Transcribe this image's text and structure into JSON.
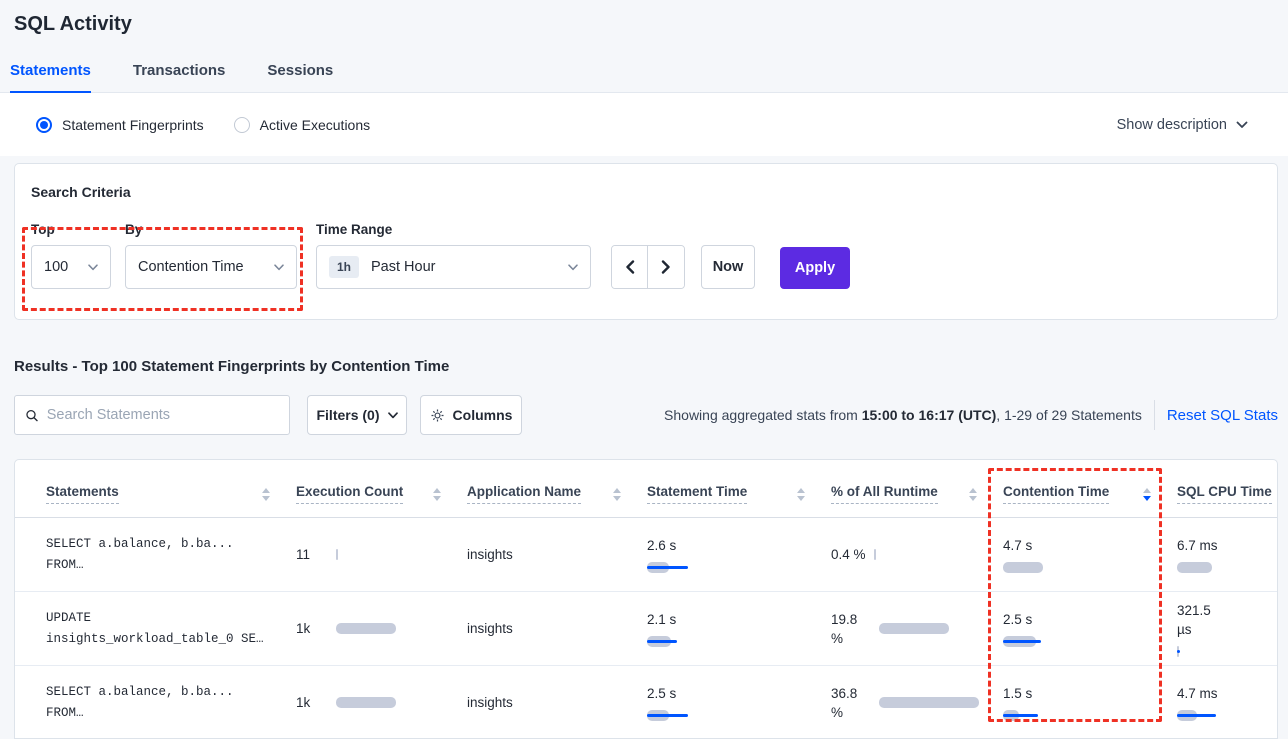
{
  "page_title": "SQL Activity",
  "tabs": [
    {
      "label": "Statements"
    },
    {
      "label": "Transactions"
    },
    {
      "label": "Sessions"
    }
  ],
  "view_toggle": {
    "fingerprints_label": "Statement Fingerprints",
    "active_executions_label": "Active Executions",
    "show_description_label": "Show description"
  },
  "search_criteria": {
    "heading": "Search Criteria",
    "top_label": "Top",
    "top_value": "100",
    "by_label": "By",
    "by_value": "Contention Time",
    "time_range_label": "Time Range",
    "time_range_badge": "1h",
    "time_range_value": "Past Hour",
    "now_label": "Now",
    "apply_label": "Apply"
  },
  "results": {
    "heading": "Results - Top 100 Statement Fingerprints by Contention Time",
    "search_placeholder": "Search Statements",
    "filters_label": "Filters (0)",
    "columns_label": "Columns",
    "stats_prefix": "Showing aggregated stats from ",
    "stats_bold": "15:00 to 16:17 (UTC)",
    "stats_suffix": ", 1-29 of 29 Statements",
    "reset_label": "Reset SQL Stats"
  },
  "table": {
    "headers": {
      "statements": "Statements",
      "execution_count": "Execution Count",
      "application_name": "Application Name",
      "statement_time": "Statement Time",
      "runtime_pct": "% of All Runtime",
      "contention_time": "Contention Time",
      "sql_cpu_time": "SQL CPU Time"
    },
    "sort": {
      "active_column": "Contention Time",
      "direction": "desc"
    },
    "rows": [
      {
        "statement_line1": "SELECT a.balance, b.ba...",
        "statement_line2": "FROM…",
        "execution_count": {
          "value": "11",
          "gray": 2,
          "blue": 0
        },
        "application_name": "insights",
        "statement_time": {
          "value": "2.6 s",
          "gray": 22,
          "blue": 41
        },
        "runtime_pct": {
          "value": "0.4 %",
          "gray": 2,
          "blue": 0
        },
        "contention_time": {
          "value": "4.7 s",
          "gray": 40,
          "blue": 0
        },
        "sql_cpu_time": {
          "value": "6.7 ms",
          "gray": 35,
          "blue": 0
        }
      },
      {
        "statement_line1": "UPDATE",
        "statement_line2": "insights_workload_table_0 SE…",
        "execution_count": {
          "value": "1k",
          "gray": 60,
          "blue": 0
        },
        "application_name": "insights",
        "statement_time": {
          "value": "2.1 s",
          "gray": 24,
          "blue": 30
        },
        "runtime_pct": {
          "value": "19.8 %",
          "gray": 70,
          "blue": 0
        },
        "contention_time": {
          "value": "2.5 s",
          "gray": 33,
          "blue": 38
        },
        "sql_cpu_time": {
          "value": "321.5 µs",
          "gray": 2,
          "blue": 3
        }
      },
      {
        "statement_line1": "SELECT a.balance, b.ba...",
        "statement_line2": "FROM…",
        "execution_count": {
          "value": "1k",
          "gray": 60,
          "blue": 0
        },
        "application_name": "insights",
        "statement_time": {
          "value": "2.5 s",
          "gray": 22,
          "blue": 41
        },
        "runtime_pct": {
          "value": "36.8 %",
          "gray": 100,
          "blue": 0
        },
        "contention_time": {
          "value": "1.5 s",
          "gray": 16,
          "blue": 35
        },
        "sql_cpu_time": {
          "value": "4.7 ms",
          "gray": 20,
          "blue": 39
        }
      }
    ]
  },
  "colors": {
    "accent_blue": "#0055ff",
    "apply_purple": "#5c2be2",
    "bar_gray": "#c6ccdb",
    "bar_blue": "#0055ff",
    "annotation_red": "#ef3124",
    "page_background": "#f5f7fa"
  }
}
